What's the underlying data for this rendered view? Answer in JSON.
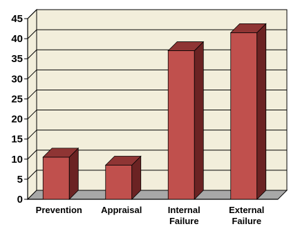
{
  "chart_data": {
    "type": "bar",
    "categories": [
      [
        "Prevention"
      ],
      [
        "Appraisal"
      ],
      [
        "Internal",
        "Failure"
      ],
      [
        "External",
        "Failure"
      ]
    ],
    "values": [
      10.5,
      8.5,
      37,
      41.5
    ],
    "ylim": [
      0,
      45
    ],
    "yticks": [
      "0",
      "5",
      "10",
      "15",
      "20",
      "25",
      "30",
      "35",
      "40",
      "45"
    ],
    "title": "",
    "xlabel": "",
    "ylabel": "",
    "grid": true,
    "legend": "none",
    "colors": {
      "bar_front": "#c0504d",
      "bar_side": "#6b2323",
      "bar_top": "#8f3534",
      "plot_wall": "#f2eedb",
      "plot_floor": "#a8a8a8",
      "gridline": "#000000"
    }
  }
}
